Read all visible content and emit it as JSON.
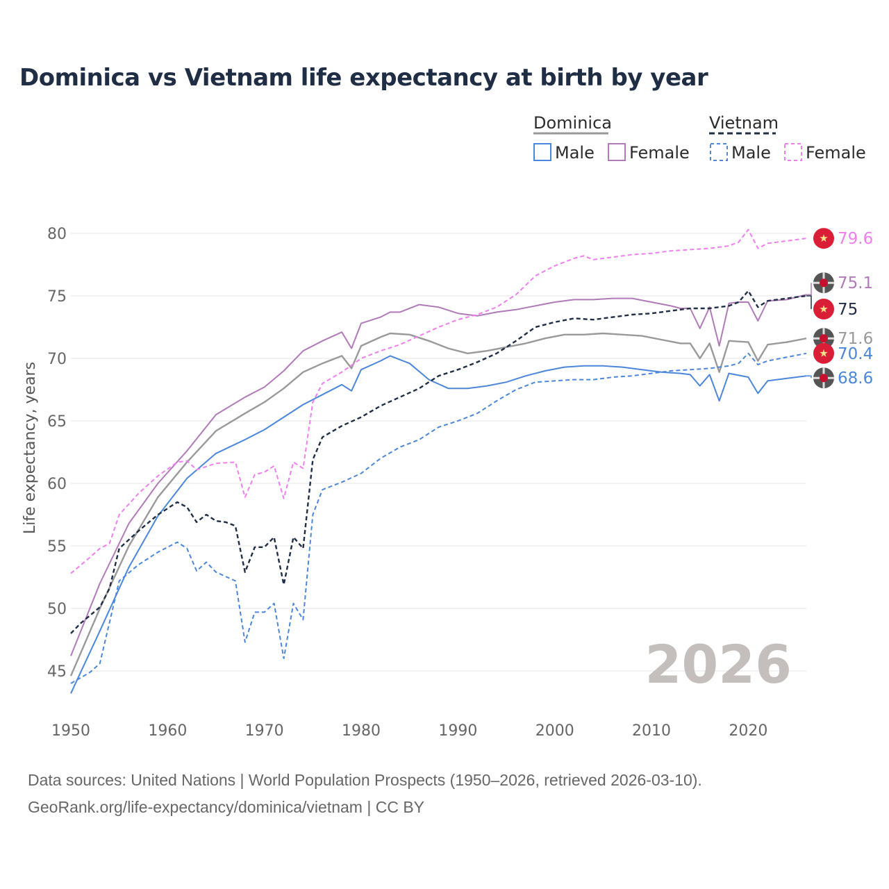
{
  "title": "Dominica vs Vietnam life expectancy at birth by year",
  "legend": {
    "groups": [
      {
        "name": "Dominica",
        "style": "solid",
        "color": "#999999"
      },
      {
        "name": "Vietnam",
        "style": "dashed",
        "color": "#1f2d45"
      }
    ],
    "items": [
      {
        "label": "Male",
        "style": "solid",
        "color": "#4a86d9"
      },
      {
        "label": "Female",
        "style": "solid",
        "color": "#b07ab8"
      },
      {
        "label": "Male",
        "style": "dashed",
        "color": "#4a86d9"
      },
      {
        "label": "Female",
        "style": "dashed",
        "color": "#f07ef0"
      }
    ]
  },
  "year_label": "2026",
  "source": {
    "line1": "Data sources: United Nations | World Population Prospects (1950–2026, retrieved 2026-03-10).",
    "line2": "GeoRank.org/life-expectancy/dominica/vietnam | CC BY"
  },
  "chart_data": {
    "type": "line",
    "title": "Dominica vs Vietnam life expectancy at birth by year",
    "xlabel": "",
    "ylabel": "Life expectancy, years",
    "xlim": [
      1950,
      2026
    ],
    "ylim": [
      42,
      82
    ],
    "xticks": [
      1950,
      1960,
      1970,
      1980,
      1990,
      2000,
      2010,
      2020
    ],
    "yticks": [
      45,
      50,
      55,
      60,
      65,
      70,
      75,
      80
    ],
    "grid": true,
    "legend_position": "top-right",
    "series": [
      {
        "name": "Dominica Female",
        "country": "Dominica",
        "sex": "Female",
        "color": "#b07ab8",
        "dash": false,
        "end_label": "75.1",
        "marker": "dominica-flag",
        "points": [
          [
            1950,
            46.2
          ],
          [
            1953,
            52.0
          ],
          [
            1956,
            56.8
          ],
          [
            1959,
            60.0
          ],
          [
            1962,
            62.6
          ],
          [
            1965,
            65.5
          ],
          [
            1968,
            66.9
          ],
          [
            1970,
            67.7
          ],
          [
            1972,
            69.0
          ],
          [
            1974,
            70.6
          ],
          [
            1976,
            71.4
          ],
          [
            1978,
            72.1
          ],
          [
            1979,
            70.8
          ],
          [
            1980,
            72.8
          ],
          [
            1982,
            73.3
          ],
          [
            1983,
            73.7
          ],
          [
            1984,
            73.7
          ],
          [
            1986,
            74.3
          ],
          [
            1988,
            74.1
          ],
          [
            1990,
            73.6
          ],
          [
            1992,
            73.4
          ],
          [
            1994,
            73.7
          ],
          [
            1996,
            73.9
          ],
          [
            1998,
            74.2
          ],
          [
            2000,
            74.5
          ],
          [
            2002,
            74.7
          ],
          [
            2004,
            74.7
          ],
          [
            2006,
            74.8
          ],
          [
            2008,
            74.8
          ],
          [
            2010,
            74.5
          ],
          [
            2012,
            74.2
          ],
          [
            2013,
            74.0
          ],
          [
            2014,
            74.0
          ],
          [
            2015,
            72.4
          ],
          [
            2016,
            74.1
          ],
          [
            2017,
            71.0
          ],
          [
            2018,
            74.4
          ],
          [
            2019,
            74.5
          ],
          [
            2020,
            74.5
          ],
          [
            2021,
            73.0
          ],
          [
            2022,
            74.6
          ],
          [
            2024,
            74.7
          ],
          [
            2026,
            75.1
          ]
        ]
      },
      {
        "name": "Dominica Total",
        "country": "Dominica",
        "sex": "Total",
        "color": "#999999",
        "dash": false,
        "end_label": "71.6",
        "marker": "dominica-flag",
        "points": [
          [
            1950,
            44.6
          ],
          [
            1953,
            50.0
          ],
          [
            1956,
            55.0
          ],
          [
            1959,
            58.9
          ],
          [
            1962,
            61.7
          ],
          [
            1965,
            64.2
          ],
          [
            1968,
            65.6
          ],
          [
            1970,
            66.5
          ],
          [
            1972,
            67.6
          ],
          [
            1974,
            68.9
          ],
          [
            1976,
            69.6
          ],
          [
            1978,
            70.2
          ],
          [
            1979,
            69.2
          ],
          [
            1980,
            71.0
          ],
          [
            1982,
            71.7
          ],
          [
            1983,
            72.0
          ],
          [
            1985,
            71.9
          ],
          [
            1987,
            71.4
          ],
          [
            1989,
            70.8
          ],
          [
            1991,
            70.4
          ],
          [
            1993,
            70.6
          ],
          [
            1995,
            70.9
          ],
          [
            1997,
            71.2
          ],
          [
            1999,
            71.6
          ],
          [
            2001,
            71.9
          ],
          [
            2003,
            71.9
          ],
          [
            2005,
            72.0
          ],
          [
            2007,
            71.9
          ],
          [
            2009,
            71.8
          ],
          [
            2011,
            71.5
          ],
          [
            2013,
            71.2
          ],
          [
            2014,
            71.2
          ],
          [
            2015,
            70.0
          ],
          [
            2016,
            71.2
          ],
          [
            2017,
            68.9
          ],
          [
            2018,
            71.4
          ],
          [
            2020,
            71.3
          ],
          [
            2021,
            69.8
          ],
          [
            2022,
            71.1
          ],
          [
            2024,
            71.3
          ],
          [
            2026,
            71.6
          ]
        ]
      },
      {
        "name": "Dominica Male",
        "country": "Dominica",
        "sex": "Male",
        "color": "#4a86d9",
        "dash": false,
        "end_label": "68.6",
        "marker": "dominica-flag",
        "points": [
          [
            1950,
            43.2
          ],
          [
            1953,
            48.2
          ],
          [
            1956,
            53.3
          ],
          [
            1959,
            57.4
          ],
          [
            1962,
            60.4
          ],
          [
            1965,
            62.4
          ],
          [
            1968,
            63.5
          ],
          [
            1970,
            64.3
          ],
          [
            1972,
            65.3
          ],
          [
            1974,
            66.3
          ],
          [
            1976,
            67.1
          ],
          [
            1978,
            67.9
          ],
          [
            1979,
            67.4
          ],
          [
            1980,
            69.1
          ],
          [
            1982,
            69.8
          ],
          [
            1983,
            70.2
          ],
          [
            1985,
            69.6
          ],
          [
            1987,
            68.3
          ],
          [
            1989,
            67.6
          ],
          [
            1991,
            67.6
          ],
          [
            1993,
            67.8
          ],
          [
            1995,
            68.1
          ],
          [
            1997,
            68.6
          ],
          [
            1999,
            69.0
          ],
          [
            2001,
            69.3
          ],
          [
            2003,
            69.4
          ],
          [
            2005,
            69.4
          ],
          [
            2007,
            69.3
          ],
          [
            2009,
            69.1
          ],
          [
            2011,
            68.9
          ],
          [
            2013,
            68.8
          ],
          [
            2014,
            68.7
          ],
          [
            2015,
            67.8
          ],
          [
            2016,
            68.7
          ],
          [
            2017,
            66.6
          ],
          [
            2018,
            68.8
          ],
          [
            2020,
            68.5
          ],
          [
            2021,
            67.2
          ],
          [
            2022,
            68.2
          ],
          [
            2024,
            68.4
          ],
          [
            2026,
            68.6
          ]
        ]
      },
      {
        "name": "Vietnam Female",
        "country": "Vietnam",
        "sex": "Female",
        "color": "#f07ef0",
        "dash": true,
        "end_label": "79.6",
        "marker": "vietnam-flag",
        "points": [
          [
            1950,
            52.8
          ],
          [
            1952,
            54.1
          ],
          [
            1953,
            54.8
          ],
          [
            1954,
            55.2
          ],
          [
            1955,
            57.5
          ],
          [
            1957,
            59.2
          ],
          [
            1959,
            60.6
          ],
          [
            1961,
            61.7
          ],
          [
            1962,
            61.8
          ],
          [
            1963,
            61.1
          ],
          [
            1965,
            61.6
          ],
          [
            1967,
            61.7
          ],
          [
            1968,
            58.9
          ],
          [
            1969,
            60.7
          ],
          [
            1970,
            60.9
          ],
          [
            1971,
            61.4
          ],
          [
            1972,
            58.8
          ],
          [
            1973,
            61.7
          ],
          [
            1974,
            61.2
          ],
          [
            1975,
            66.5
          ],
          [
            1976,
            68.0
          ],
          [
            1978,
            68.9
          ],
          [
            1980,
            70.0
          ],
          [
            1982,
            70.6
          ],
          [
            1984,
            71.1
          ],
          [
            1986,
            71.8
          ],
          [
            1988,
            72.5
          ],
          [
            1990,
            73.1
          ],
          [
            1992,
            73.5
          ],
          [
            1994,
            74.1
          ],
          [
            1996,
            75.1
          ],
          [
            1998,
            76.6
          ],
          [
            2000,
            77.4
          ],
          [
            2002,
            78.0
          ],
          [
            2003,
            78.2
          ],
          [
            2004,
            77.9
          ],
          [
            2006,
            78.1
          ],
          [
            2008,
            78.3
          ],
          [
            2010,
            78.4
          ],
          [
            2012,
            78.6
          ],
          [
            2014,
            78.7
          ],
          [
            2016,
            78.8
          ],
          [
            2018,
            79.0
          ],
          [
            2019,
            79.3
          ],
          [
            2020,
            80.3
          ],
          [
            2021,
            78.8
          ],
          [
            2022,
            79.2
          ],
          [
            2024,
            79.4
          ],
          [
            2026,
            79.6
          ]
        ]
      },
      {
        "name": "Vietnam Total",
        "country": "Vietnam",
        "sex": "Total",
        "color": "#1f2d45",
        "dash": true,
        "end_label": "75",
        "marker": "vietnam-flag",
        "points": [
          [
            1950,
            48.0
          ],
          [
            1951,
            48.8
          ],
          [
            1953,
            50.1
          ],
          [
            1954,
            51.6
          ],
          [
            1955,
            54.8
          ],
          [
            1957,
            56.2
          ],
          [
            1959,
            57.5
          ],
          [
            1961,
            58.5
          ],
          [
            1962,
            58.1
          ],
          [
            1963,
            56.9
          ],
          [
            1964,
            57.5
          ],
          [
            1965,
            57.0
          ],
          [
            1966,
            56.9
          ],
          [
            1967,
            56.6
          ],
          [
            1968,
            52.9
          ],
          [
            1969,
            54.9
          ],
          [
            1970,
            54.9
          ],
          [
            1971,
            55.7
          ],
          [
            1972,
            51.9
          ],
          [
            1973,
            55.7
          ],
          [
            1974,
            54.8
          ],
          [
            1975,
            61.9
          ],
          [
            1976,
            63.7
          ],
          [
            1978,
            64.6
          ],
          [
            1980,
            65.3
          ],
          [
            1982,
            66.2
          ],
          [
            1984,
            66.9
          ],
          [
            1986,
            67.6
          ],
          [
            1988,
            68.6
          ],
          [
            1990,
            69.1
          ],
          [
            1992,
            69.7
          ],
          [
            1994,
            70.4
          ],
          [
            1996,
            71.4
          ],
          [
            1998,
            72.5
          ],
          [
            2000,
            72.9
          ],
          [
            2002,
            73.2
          ],
          [
            2004,
            73.1
          ],
          [
            2006,
            73.3
          ],
          [
            2008,
            73.5
          ],
          [
            2010,
            73.6
          ],
          [
            2012,
            73.8
          ],
          [
            2014,
            74.0
          ],
          [
            2016,
            74.0
          ],
          [
            2018,
            74.2
          ],
          [
            2019,
            74.5
          ],
          [
            2020,
            75.4
          ],
          [
            2021,
            74.1
          ],
          [
            2022,
            74.6
          ],
          [
            2024,
            74.8
          ],
          [
            2026,
            75.0
          ]
        ]
      },
      {
        "name": "Vietnam Male",
        "country": "Vietnam",
        "sex": "Male",
        "color": "#4a86d9",
        "dash": true,
        "end_label": "70.4",
        "marker": "vietnam-flag",
        "points": [
          [
            1950,
            44.0
          ],
          [
            1952,
            44.9
          ],
          [
            1953,
            45.6
          ],
          [
            1955,
            52.2
          ],
          [
            1957,
            53.5
          ],
          [
            1959,
            54.5
          ],
          [
            1961,
            55.3
          ],
          [
            1962,
            54.8
          ],
          [
            1963,
            53.0
          ],
          [
            1964,
            53.7
          ],
          [
            1965,
            52.9
          ],
          [
            1967,
            52.2
          ],
          [
            1968,
            47.3
          ],
          [
            1969,
            49.7
          ],
          [
            1970,
            49.7
          ],
          [
            1971,
            50.4
          ],
          [
            1972,
            46.0
          ],
          [
            1973,
            50.4
          ],
          [
            1974,
            49.1
          ],
          [
            1975,
            57.5
          ],
          [
            1976,
            59.5
          ],
          [
            1978,
            60.1
          ],
          [
            1980,
            60.8
          ],
          [
            1982,
            62.0
          ],
          [
            1984,
            62.9
          ],
          [
            1986,
            63.5
          ],
          [
            1988,
            64.5
          ],
          [
            1990,
            65.0
          ],
          [
            1992,
            65.6
          ],
          [
            1994,
            66.6
          ],
          [
            1996,
            67.5
          ],
          [
            1998,
            68.1
          ],
          [
            2000,
            68.2
          ],
          [
            2002,
            68.3
          ],
          [
            2004,
            68.3
          ],
          [
            2006,
            68.5
          ],
          [
            2008,
            68.6
          ],
          [
            2010,
            68.8
          ],
          [
            2012,
            69.0
          ],
          [
            2014,
            69.1
          ],
          [
            2016,
            69.2
          ],
          [
            2018,
            69.4
          ],
          [
            2019,
            69.6
          ],
          [
            2020,
            70.4
          ],
          [
            2021,
            69.5
          ],
          [
            2022,
            69.8
          ],
          [
            2024,
            70.1
          ],
          [
            2026,
            70.4
          ]
        ]
      }
    ]
  }
}
